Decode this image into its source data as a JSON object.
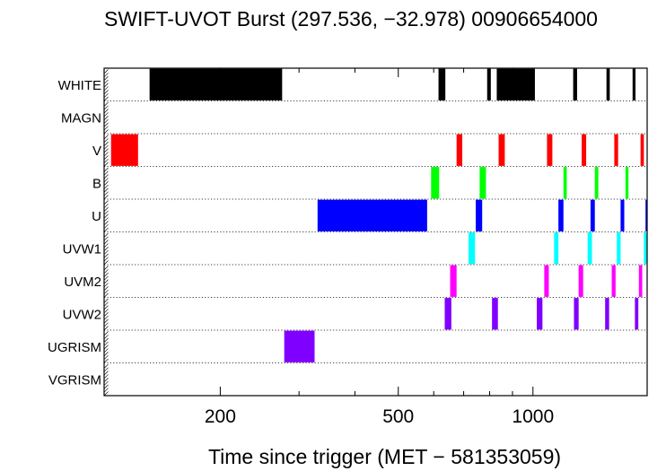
{
  "chart_data": {
    "type": "bar",
    "title": "SWIFT-UVOT Burst (297.536, −32.978) 00906654000",
    "xlabel": "Time since trigger (MET − 581353059)",
    "x_scale": "log",
    "xlim": [
      110,
      1800
    ],
    "xticks": [
      {
        "value": 200,
        "label": "200"
      },
      {
        "value": 500,
        "label": "500"
      },
      {
        "value": 1000,
        "label": "1000"
      }
    ],
    "grid": "horizontal dotted row separators",
    "rows": [
      {
        "name": "WHITE",
        "color": "#000000",
        "intervals": [
          [
            139,
            275
          ],
          [
            615,
            637
          ],
          [
            790,
            805
          ],
          [
            830,
            1010
          ],
          [
            1230,
            1255
          ],
          [
            1460,
            1485
          ],
          [
            1670,
            1695
          ]
        ]
      },
      {
        "name": "MAGN",
        "color": "#000000",
        "intervals": []
      },
      {
        "name": "V",
        "color": "#ff0000",
        "intervals": [
          [
            114,
            131
          ],
          [
            675,
            695
          ],
          [
            838,
            865
          ],
          [
            1075,
            1105
          ],
          [
            1285,
            1315
          ],
          [
            1520,
            1550
          ],
          [
            1740,
            1770
          ]
        ]
      },
      {
        "name": "B",
        "color": "#00ff00",
        "intervals": [
          [
            592,
            617
          ],
          [
            760,
            785
          ],
          [
            1170,
            1190
          ],
          [
            1375,
            1400
          ],
          [
            1610,
            1635
          ]
        ]
      },
      {
        "name": "U",
        "color": "#0000ff",
        "intervals": [
          [
            330,
            580
          ],
          [
            745,
            770
          ],
          [
            1140,
            1170
          ],
          [
            1345,
            1375
          ],
          [
            1570,
            1600
          ],
          [
            1785,
            1810
          ]
        ]
      },
      {
        "name": "UVW1",
        "color": "#00ffff",
        "intervals": [
          [
            718,
            742
          ],
          [
            1115,
            1140
          ],
          [
            1325,
            1355
          ],
          [
            1540,
            1570
          ],
          [
            1770,
            1795
          ]
        ]
      },
      {
        "name": "UVM2",
        "color": "#ff00ff",
        "intervals": [
          [
            653,
            675
          ],
          [
            1060,
            1085
          ],
          [
            1265,
            1295
          ],
          [
            1500,
            1530
          ],
          [
            1725,
            1755
          ]
        ]
      },
      {
        "name": "UVW2",
        "color": "#8000ff",
        "intervals": [
          [
            635,
            657
          ],
          [
            810,
            835
          ],
          [
            1020,
            1050
          ],
          [
            1235,
            1265
          ],
          [
            1450,
            1480
          ],
          [
            1690,
            1720
          ]
        ]
      },
      {
        "name": "UGRISM",
        "color": "#8000ff",
        "intervals": [
          [
            278,
            325
          ]
        ]
      },
      {
        "name": "VGRISM",
        "color": "#000000",
        "intervals": []
      }
    ]
  }
}
